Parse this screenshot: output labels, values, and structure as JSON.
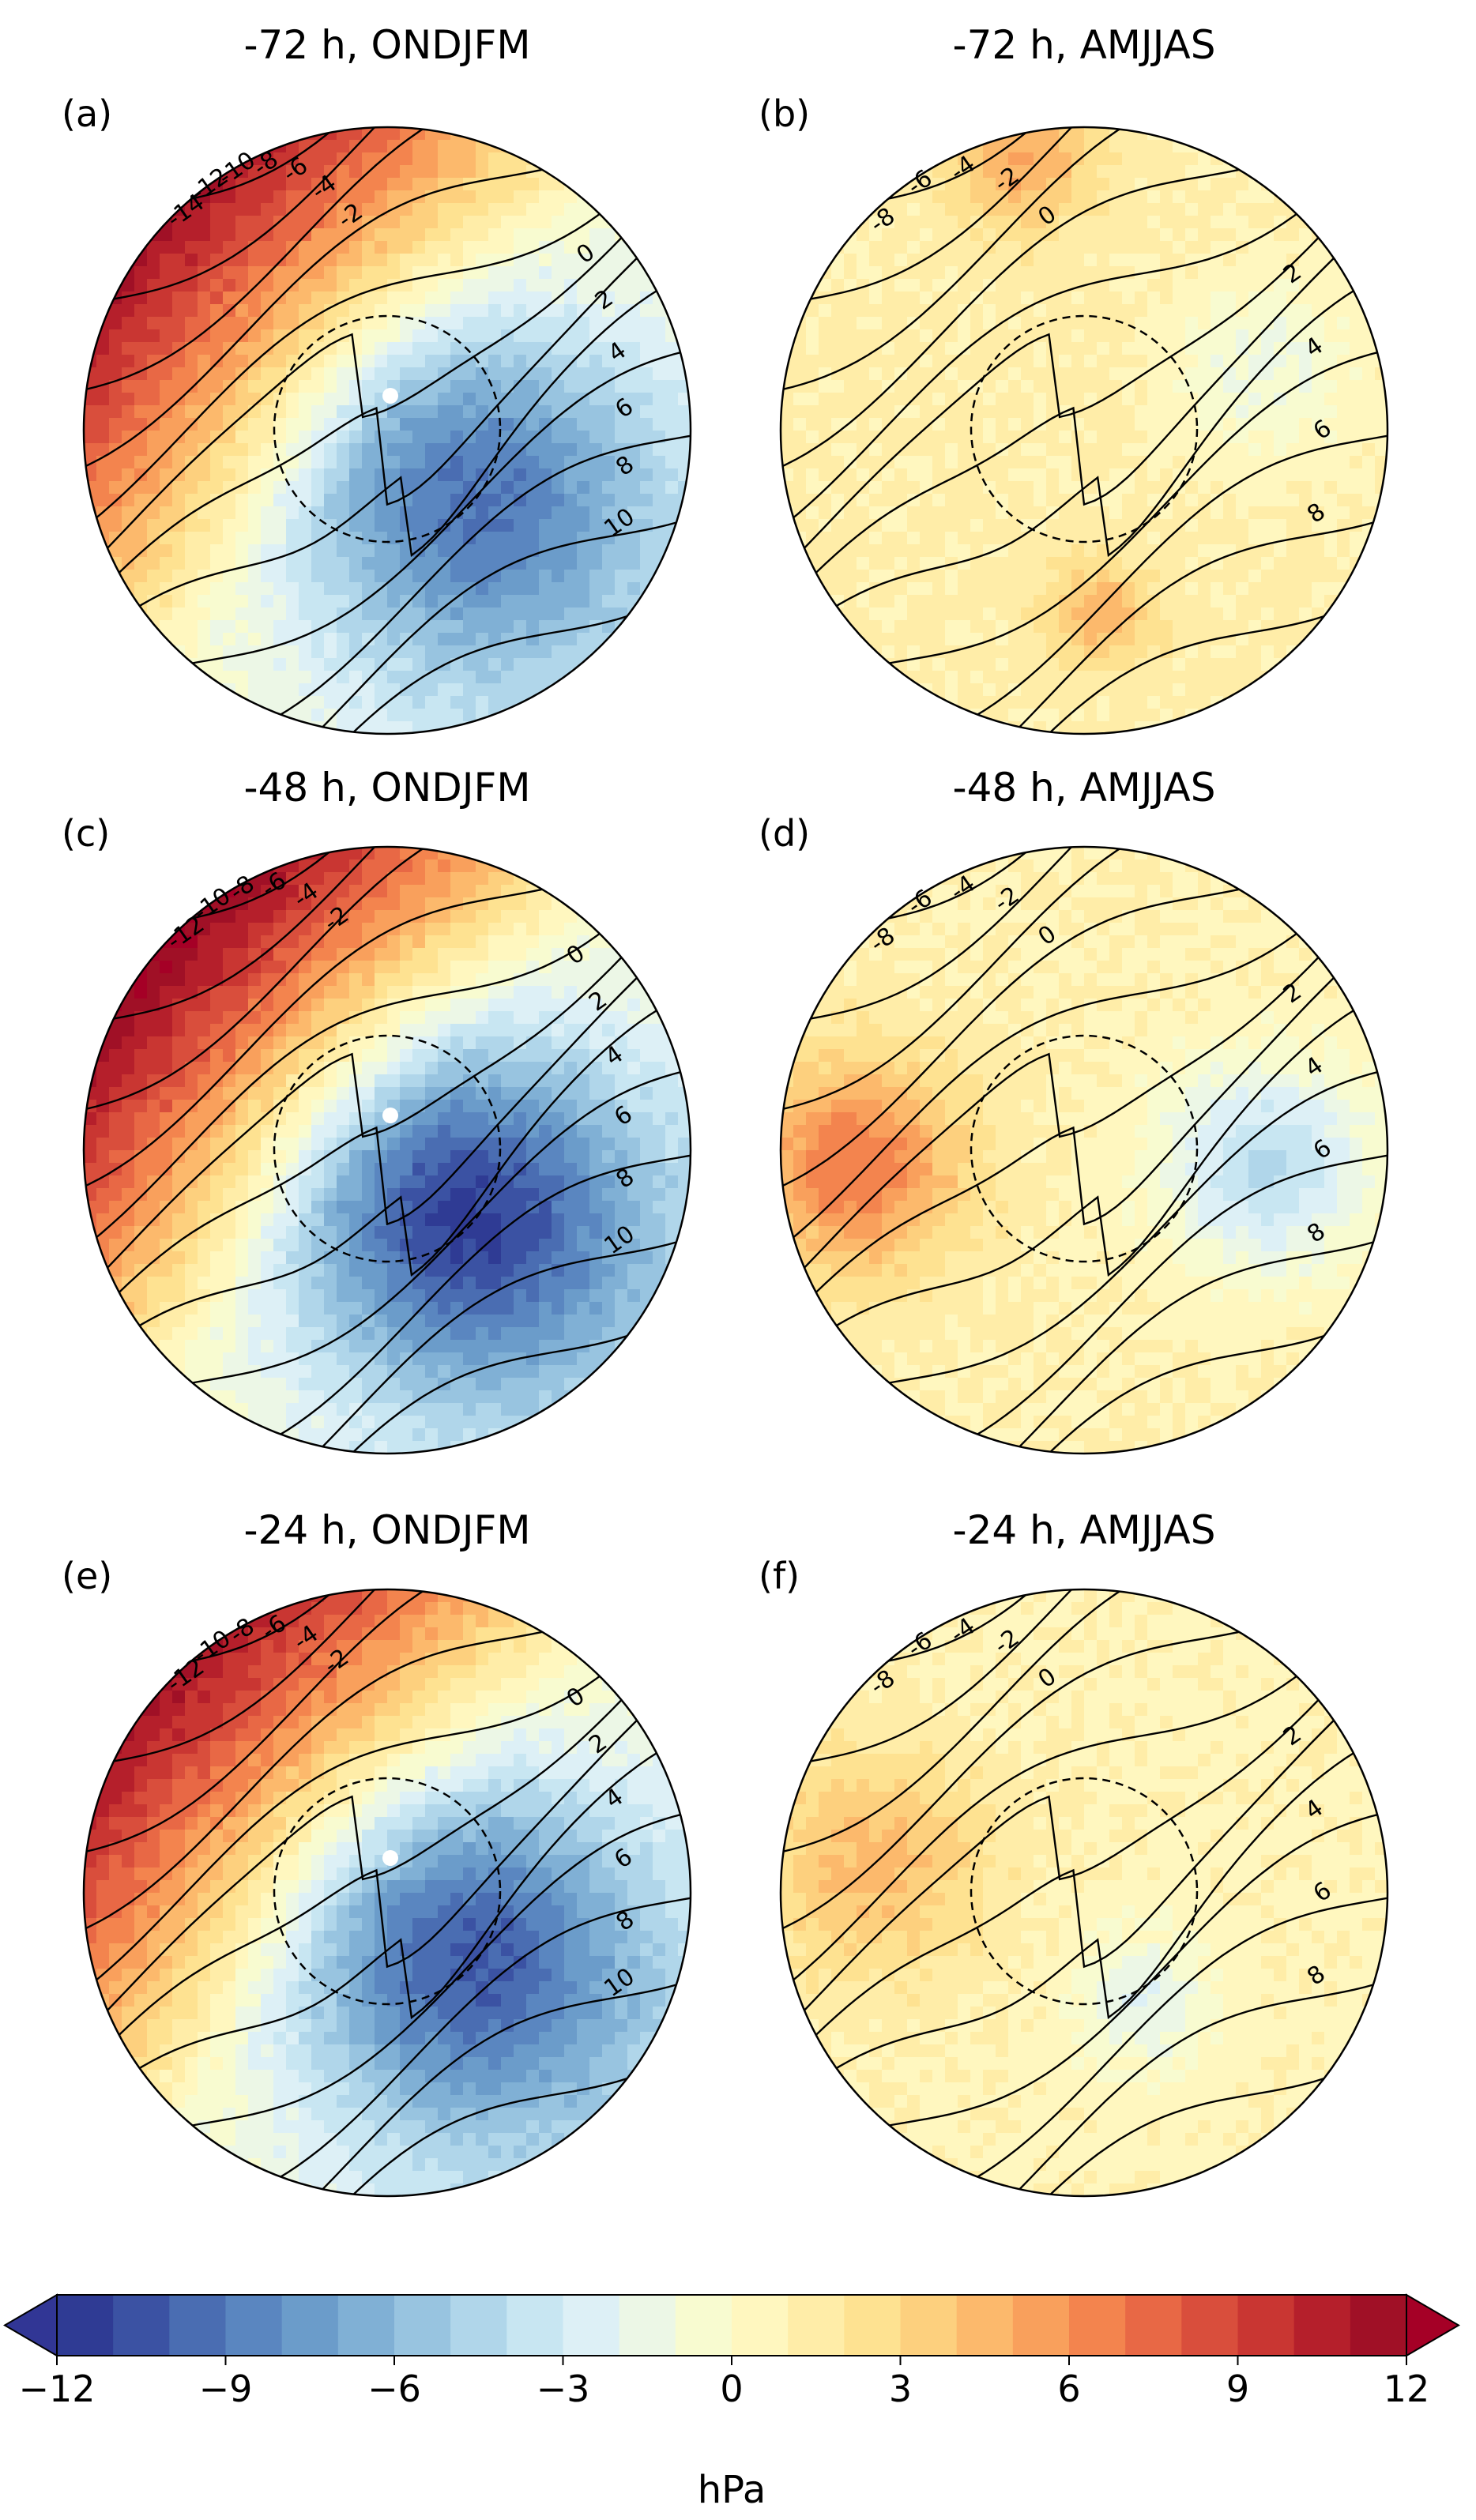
{
  "chart_data": {
    "type": "heatmap",
    "units": "hPa",
    "colorbar": {
      "label": "hPa",
      "range": [
        -12,
        12
      ],
      "step": 1,
      "extend": "both",
      "ticks": [
        -12,
        -9,
        -6,
        -3,
        0,
        3,
        6,
        9,
        12
      ],
      "tick_labels": [
        "−12",
        "−9",
        "−6",
        "−3",
        "0",
        "3",
        "6",
        "9",
        "12"
      ],
      "colors": [
        "#2f3b94",
        "#3b52a3",
        "#4a6db2",
        "#5a86c0",
        "#6b9cca",
        "#80b0d5",
        "#98c4e0",
        "#b0d6ea",
        "#c8e6f2",
        "#ddf0f6",
        "#ecf7e6",
        "#f8fbd0",
        "#fff7bf",
        "#ffeda8",
        "#fee291",
        "#fdd07e",
        "#fcb96c",
        "#f9a05c",
        "#f3844e",
        "#e86845",
        "#d94e3c",
        "#c93632",
        "#b51f2b",
        "#a01026"
      ],
      "under_color": "#313695",
      "over_color": "#a50026"
    },
    "panels": [
      {
        "id": "a",
        "label": "(a)",
        "title": "-72 h, ONDJFM",
        "season": "ONDJFM",
        "lag_hours": -72,
        "shading": {
          "warm_side": "upper-left",
          "warm_max": 10,
          "cool_side": "right-lower",
          "cool_min": -8
        },
        "contour_labels": [
          "-14",
          "-12",
          "-10",
          "-8",
          "-6",
          "-4",
          "-2",
          "0",
          "2",
          "4",
          "6",
          "8",
          "10"
        ]
      },
      {
        "id": "b",
        "label": "(b)",
        "title": "-72 h, AMJJAS",
        "season": "AMJJAS",
        "lag_hours": -72,
        "shading": {
          "warm_side": "top and bottom-centre",
          "warm_max": 5,
          "cool_side": "centre-right",
          "cool_min": -2
        },
        "contour_labels": [
          "-8",
          "-6",
          "-4",
          "-2",
          "0",
          "2",
          "4",
          "6",
          "8"
        ]
      },
      {
        "id": "c",
        "label": "(c)",
        "title": "-48 h, ONDJFM",
        "season": "ONDJFM",
        "lag_hours": -48,
        "shading": {
          "warm_side": "upper-left",
          "warm_max": 11,
          "cool_side": "right-lower",
          "cool_min": -10
        },
        "contour_labels": [
          "-12",
          "-10",
          "-8",
          "-6",
          "-4",
          "-2",
          "0",
          "2",
          "4",
          "6",
          "8",
          "10"
        ]
      },
      {
        "id": "d",
        "label": "(d)",
        "title": "-48 h, AMJJAS",
        "season": "AMJJAS",
        "lag_hours": -48,
        "shading": {
          "warm_side": "left",
          "warm_max": 6,
          "cool_side": "right",
          "cool_min": -5
        },
        "contour_labels": [
          "-8",
          "-6",
          "-4",
          "-2",
          "0",
          "2",
          "4",
          "6",
          "8"
        ]
      },
      {
        "id": "e",
        "label": "(e)",
        "title": "-24 h, ONDJFM",
        "season": "ONDJFM",
        "lag_hours": -24,
        "shading": {
          "warm_side": "upper-left",
          "warm_max": 10,
          "cool_side": "right-lower",
          "cool_min": -9
        },
        "contour_labels": [
          "-12",
          "-10",
          "-8",
          "-6",
          "-4",
          "-2",
          "0",
          "2",
          "4",
          "6",
          "8",
          "10"
        ]
      },
      {
        "id": "f",
        "label": "(f)",
        "title": "-24 h, AMJJAS",
        "season": "AMJJAS",
        "lag_hours": -24,
        "shading": {
          "warm_side": "left",
          "warm_max": 4,
          "cool_side": "centre-right",
          "cool_min": -3
        },
        "contour_labels": [
          "-8",
          "-6",
          "-4",
          "-2",
          "0",
          "2",
          "4",
          "6",
          "8"
        ]
      }
    ]
  }
}
